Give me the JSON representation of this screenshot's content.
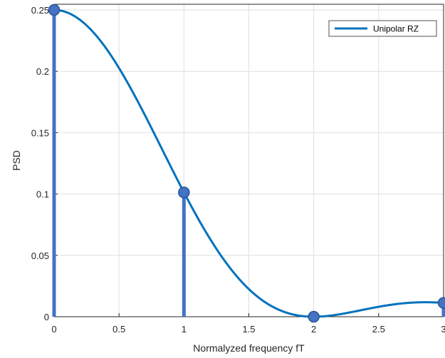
{
  "chart_data": {
    "type": "line",
    "title": "",
    "xlabel": "Normalyzed frequency fT",
    "ylabel": "PSD",
    "xlim": [
      0,
      3
    ],
    "ylim": [
      0,
      0.25
    ],
    "grid": true,
    "legend_position": "top-right",
    "x_ticks": [
      0,
      0.5,
      1,
      1.5,
      2,
      2.5,
      3
    ],
    "x_tick_labels": [
      "0",
      "0.5",
      "1",
      "1.5",
      "2",
      "2.5",
      "3"
    ],
    "y_ticks": [
      0,
      0.05,
      0.1,
      0.15,
      0.2,
      0.25
    ],
    "y_tick_labels": [
      "0",
      "0.05",
      "0.1",
      "0.15",
      "0.2",
      "0.25"
    ],
    "series": [
      {
        "name": "Unipolar RZ",
        "type": "line",
        "color": "#0072BD",
        "formula": "0.25*sinc^2(fT/2)"
      },
      {
        "type": "stem",
        "color": "#4472C4",
        "x": [
          0,
          1,
          2,
          3
        ],
        "y": [
          0.25,
          0.1013,
          0,
          0.01126
        ]
      }
    ]
  }
}
